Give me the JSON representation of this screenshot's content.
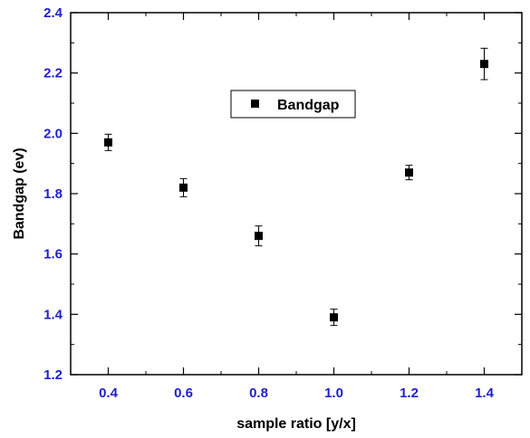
{
  "chart_data": {
    "type": "scatter",
    "title": "",
    "xlabel": "sample ratio [y/x]",
    "ylabel": "Bandgap (ev)",
    "xlim": [
      0.3,
      1.5
    ],
    "ylim": [
      1.2,
      2.4
    ],
    "xticks": [
      0.4,
      0.6,
      0.8,
      1.0,
      1.2,
      1.4
    ],
    "xtick_labels": [
      "0.4",
      "0.6",
      "0.8",
      "1.0",
      "1.2",
      "1.4"
    ],
    "yticks": [
      1.2,
      1.4,
      1.6,
      1.8,
      2.0,
      2.2,
      2.4
    ],
    "ytick_labels": [
      "1.2",
      "1.4",
      "1.6",
      "1.8",
      "2.0",
      "2.2",
      "2.4"
    ],
    "grid": false,
    "legend_position": "upper-center",
    "series": [
      {
        "name": "Bandgap",
        "marker": "square",
        "color": "#000000",
        "points": [
          {
            "x": 0.4,
            "y": 1.97,
            "err": 0.027
          },
          {
            "x": 0.6,
            "y": 1.82,
            "err": 0.03
          },
          {
            "x": 0.8,
            "y": 1.66,
            "err": 0.033
          },
          {
            "x": 1.0,
            "y": 1.39,
            "err": 0.027
          },
          {
            "x": 1.2,
            "y": 1.87,
            "err": 0.024
          },
          {
            "x": 1.4,
            "y": 2.23,
            "err": 0.052
          }
        ]
      }
    ],
    "tick_label_color": "#1f1fcc"
  }
}
